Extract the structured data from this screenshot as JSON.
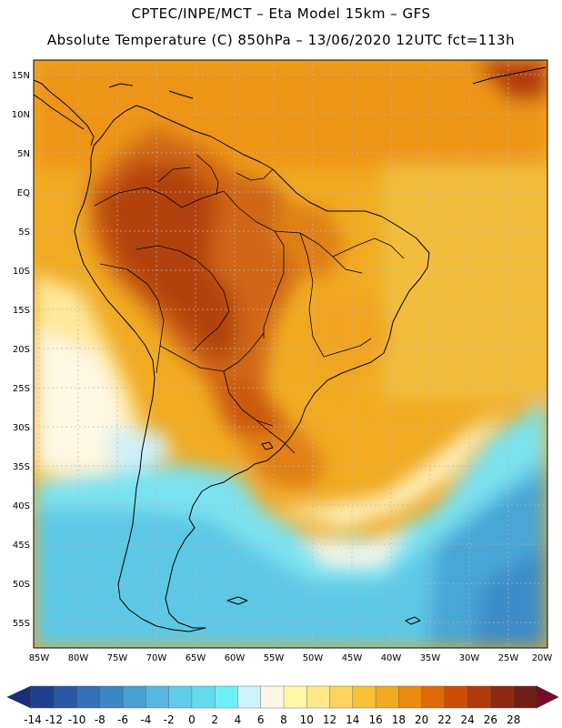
{
  "header": {
    "line1": "CPTEC/INPE/MCT –  Eta Model 15km – GFS",
    "line2": "Absolute Temperature (C) 850hPa – 13/06/2020 12UTC fct=113h"
  },
  "map": {
    "lat_labels": [
      "15N",
      "10N",
      "5N",
      "EQ",
      "5S",
      "10S",
      "15S",
      "20S",
      "25S",
      "30S",
      "35S",
      "40S",
      "45S",
      "50S",
      "55S"
    ],
    "lon_labels": [
      "85W",
      "80W",
      "75W",
      "70W",
      "65W",
      "60W",
      "55W",
      "50W",
      "45W",
      "40W",
      "35W",
      "30W",
      "25W",
      "20W"
    ]
  },
  "colorbar": {
    "ticks": [
      "-14",
      "-12",
      "-10",
      "-8",
      "-6",
      "-4",
      "-2",
      "0",
      "2",
      "4",
      "6",
      "8",
      "10",
      "12",
      "14",
      "16",
      "18",
      "20",
      "22",
      "24",
      "26",
      "28"
    ],
    "colors": [
      "#1f3f8f",
      "#2a57a6",
      "#3470b6",
      "#3b86c4",
      "#4a9fd2",
      "#57b7df",
      "#5fcbe8",
      "#64dcee",
      "#6cf0f8",
      "#cdf3fb",
      "#fff7e6",
      "#fff7a8",
      "#ffe98a",
      "#fbd35e",
      "#f6c037",
      "#f0a920",
      "#ee8c10",
      "#e06a08",
      "#cc4e08",
      "#b03a0c",
      "#8b2a10",
      "#6e2014"
    ],
    "low_arrow_color": "#1a2f7a",
    "high_arrow_color": "#7a0a2a"
  }
}
